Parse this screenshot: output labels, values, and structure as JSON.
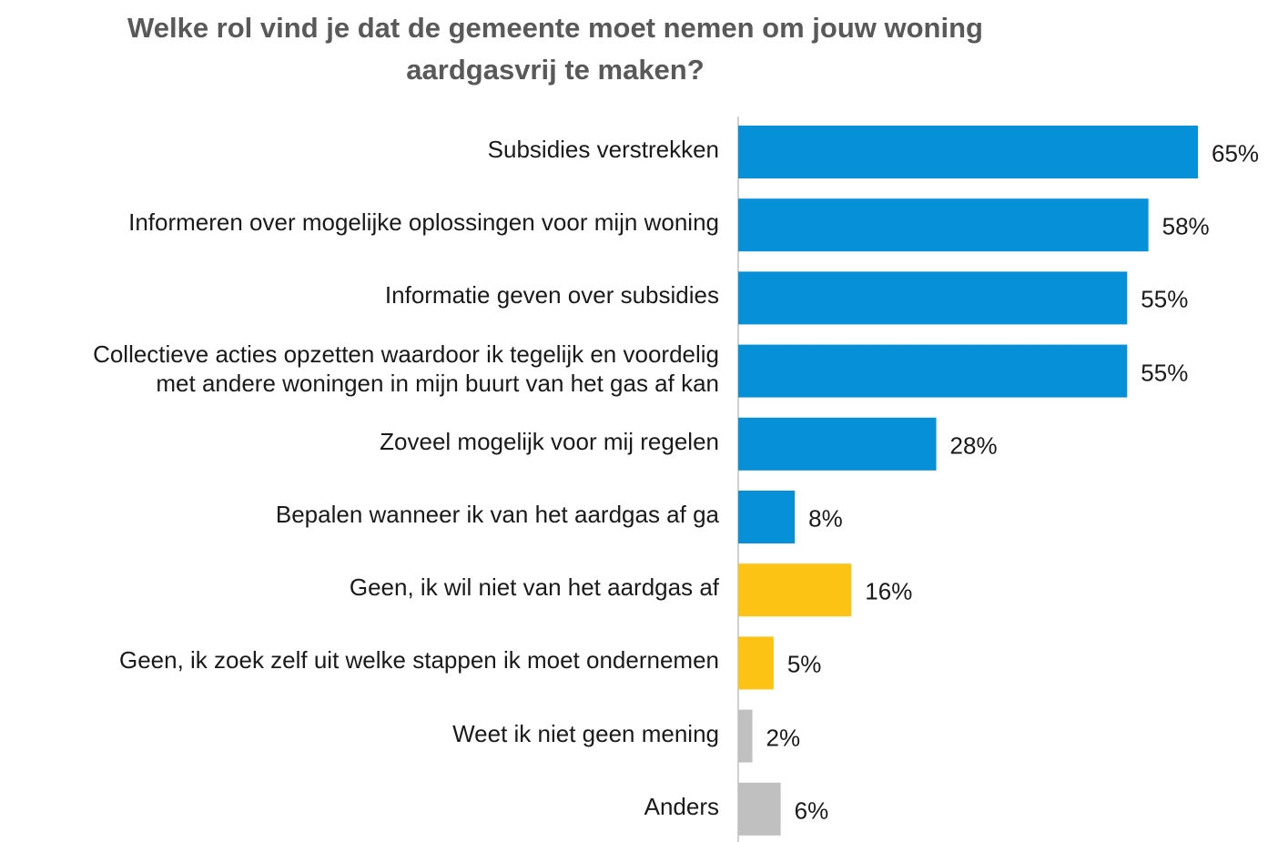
{
  "chart_data": {
    "type": "hbar",
    "title": "Welke rol vind je dat de gemeente moet nemen om jouw woning\naardgasvrij te maken?",
    "categories": [
      "Subsidies verstrekken",
      "Informeren over mogelijke oplossingen voor mijn woning",
      "Informatie geven over subsidies",
      "Collectieve acties opzetten waardoor ik tegelijk en voordelig\nmet andere woningen in mijn buurt van het gas af kan",
      "Zoveel mogelijk voor mij regelen",
      "Bepalen wanneer ik van het aardgas af ga",
      "Geen, ik wil niet van het aardgas af",
      "Geen, ik zoek zelf uit welke stappen ik moet ondernemen",
      "Weet ik niet geen mening",
      "Anders"
    ],
    "values": [
      65,
      58,
      55,
      55,
      28,
      8,
      16,
      5,
      2,
      6
    ],
    "value_labels": [
      "65%",
      "58%",
      "55%",
      "55%",
      "28%",
      "8%",
      "16%",
      "5%",
      "2%",
      "6%"
    ],
    "colors": [
      "#0590d8",
      "#0590d8",
      "#0590d8",
      "#0590d8",
      "#0590d8",
      "#0590d8",
      "#fcc314",
      "#fcc314",
      "#c0c0c0",
      "#c0c0c0"
    ],
    "xlim": [
      0,
      65
    ]
  }
}
